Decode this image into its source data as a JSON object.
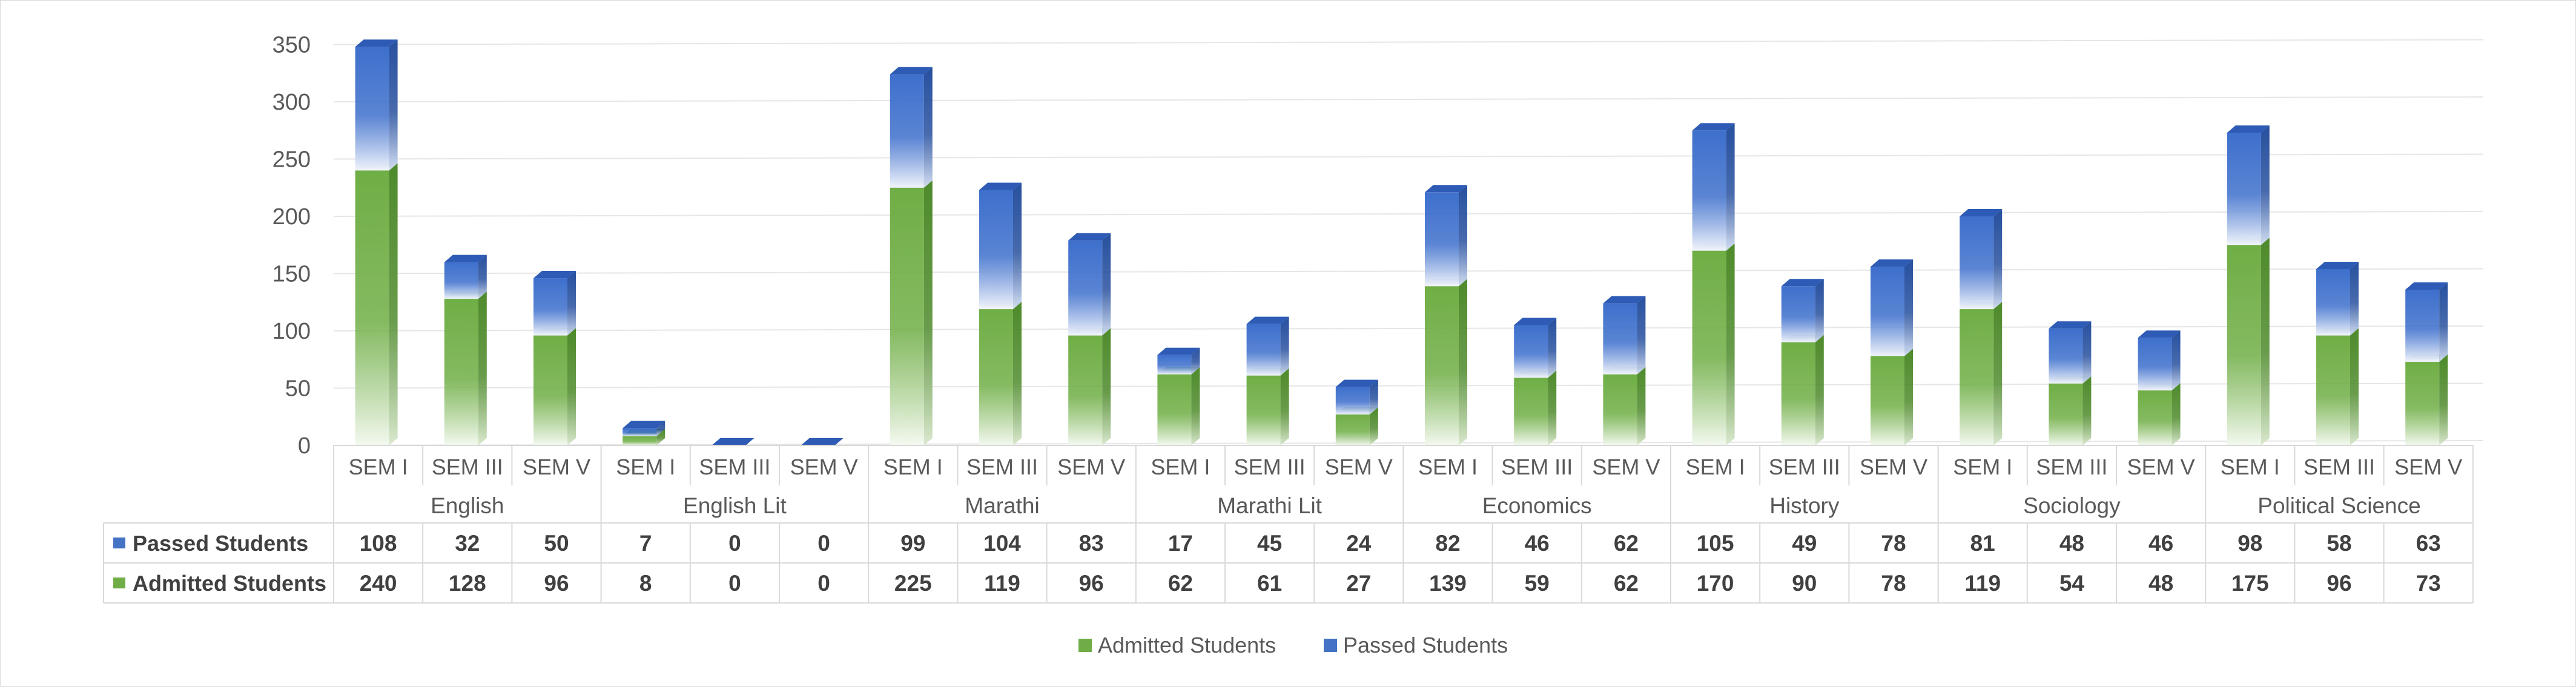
{
  "chart_data": {
    "type": "bar",
    "stacked": true,
    "style": "3d-column",
    "y_axis": {
      "min": 0,
      "max": 350,
      "step": 50,
      "ticks": [
        "0",
        "50",
        "100",
        "150",
        "200",
        "250",
        "300",
        "350"
      ]
    },
    "grid": true,
    "groups": [
      "English",
      "English Lit",
      "Marathi",
      "Marathi Lit",
      "Economics",
      "History",
      "Sociology",
      "Political Science"
    ],
    "subcategories": [
      "SEM I",
      "SEM III",
      "SEM V"
    ],
    "series": [
      {
        "name": "Admitted Students",
        "color": "#70ad47",
        "values": [
          240,
          128,
          96,
          8,
          0,
          0,
          225,
          119,
          96,
          62,
          61,
          27,
          139,
          59,
          62,
          170,
          90,
          78,
          119,
          54,
          48,
          175,
          96,
          73
        ]
      },
      {
        "name": "Passed Students",
        "color": "#4472c4",
        "values": [
          108,
          32,
          50,
          7,
          0,
          0,
          99,
          104,
          83,
          17,
          45,
          24,
          82,
          46,
          62,
          105,
          49,
          78,
          81,
          48,
          46,
          98,
          58,
          63
        ]
      }
    ],
    "table_rows": [
      "Passed Students",
      "Admitted Students"
    ],
    "legend": {
      "position": "bottom",
      "entries": [
        "Admitted Students",
        "Passed Students"
      ]
    }
  }
}
